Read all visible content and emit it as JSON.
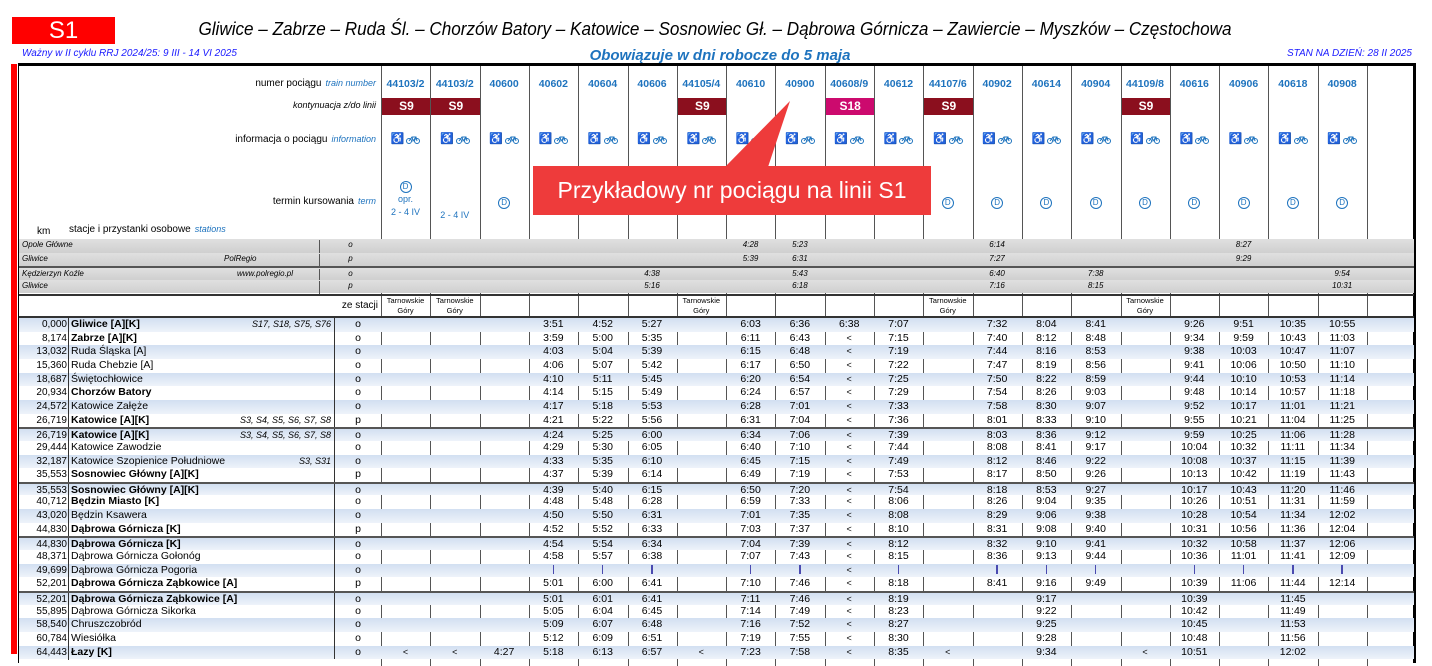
{
  "header": {
    "line": "S1",
    "title": "Gliwice – Zabrze – Ruda Śl. – Chorzów Batory – Katowice – Sosnowiec Gł. – Dąbrowa Górnicza – Zawiercie – Myszków – Częstochowa",
    "validity": "Ważny w II cyklu RRJ 2024/25: 9 III - 14 VI 2025",
    "days": "Obowiązuje w dni robocze do 5 maja",
    "state": "STAN NA DZIEŃ: 28 II 2025",
    "line_color": "#ff0000"
  },
  "labels": {
    "train_number": "numer pociągu",
    "train_number_en": "train number",
    "continuation": "kontynuacja z/do linii",
    "info": "informacja o pociągu",
    "info_en": "information",
    "term": "termin kursowania",
    "term_en": "term",
    "km": "km",
    "stations": "stacje i przystanki osobowe",
    "stations_en": "stations",
    "from_station": "ze stacji",
    "operator": "PolRegio",
    "operator_url": "www.polregio.pl"
  },
  "callout": "Przykładowy nr pociągu na linii S1",
  "colors": {
    "S9": "#8b0f1e",
    "S18": "#cc0a6e",
    "accent": "#1e73be"
  },
  "trains": [
    {
      "number": "44103/2",
      "cont": "S9",
      "term": [
        "D",
        "opr.",
        "2 - 4 IV"
      ],
      "from": "Tarnowskie Góry"
    },
    {
      "number": "44103/2",
      "cont": "S9",
      "term": [
        "",
        "2 - 4 IV"
      ],
      "from": "Tarnowskie Góry"
    },
    {
      "number": "40600",
      "cont": "",
      "term": [
        "D"
      ],
      "from": ""
    },
    {
      "number": "40602",
      "cont": "",
      "term": [],
      "from": ""
    },
    {
      "number": "40604",
      "cont": "",
      "term": [],
      "from": ""
    },
    {
      "number": "40606",
      "cont": "",
      "term": [],
      "from": ""
    },
    {
      "number": "44105/4",
      "cont": "S9",
      "term": [],
      "from": "Tarnowskie Góry"
    },
    {
      "number": "40610",
      "cont": "",
      "term": [],
      "from": ""
    },
    {
      "number": "40900",
      "cont": "",
      "term": [],
      "from": ""
    },
    {
      "number": "40608/9",
      "cont": "S18",
      "term": [],
      "from": ""
    },
    {
      "number": "40612",
      "cont": "",
      "term": [],
      "from": ""
    },
    {
      "number": "44107/6",
      "cont": "S9",
      "term": [
        "D"
      ],
      "from": "Tarnowskie Góry"
    },
    {
      "number": "40902",
      "cont": "",
      "term": [
        "D"
      ],
      "from": ""
    },
    {
      "number": "40614",
      "cont": "",
      "term": [
        "D"
      ],
      "from": ""
    },
    {
      "number": "40904",
      "cont": "",
      "term": [
        "D"
      ],
      "from": ""
    },
    {
      "number": "44109/8",
      "cont": "S9",
      "term": [
        "D"
      ],
      "from": "Tarnowskie Góry"
    },
    {
      "number": "40616",
      "cont": "",
      "term": [
        "D"
      ],
      "from": ""
    },
    {
      "number": "40906",
      "cont": "",
      "term": [
        "D"
      ],
      "from": ""
    },
    {
      "number": "40618",
      "cont": "",
      "term": [
        "D"
      ],
      "from": ""
    },
    {
      "number": "40908",
      "cont": "",
      "term": [
        "D"
      ],
      "from": ""
    }
  ],
  "connections": [
    {
      "station": "Opole Główne",
      "note": "",
      "type": "o",
      "times": [
        "",
        "",
        "",
        "",
        "",
        "",
        "",
        "4:28",
        "5:23",
        "",
        "",
        "",
        "6:14",
        "",
        "",
        "",
        "",
        "8:27",
        "",
        ""
      ]
    },
    {
      "station": "Gliwice",
      "note": "PolRegio",
      "type": "p",
      "times": [
        "",
        "",
        "",
        "",
        "",
        "",
        "",
        "5:39",
        "6:31",
        "",
        "",
        "",
        "7:27",
        "",
        "",
        "",
        "",
        "9:29",
        "",
        ""
      ]
    },
    {
      "station": "Kędzierzyn Koźle",
      "note": "www.polregio.pl",
      "type": "o",
      "times": [
        "",
        "",
        "",
        "",
        "",
        "4:38",
        "",
        "",
        "5:43",
        "",
        "",
        "",
        "6:40",
        "",
        "7:38",
        "",
        "",
        "",
        "",
        "9:54"
      ]
    },
    {
      "station": "Gliwice",
      "note": "",
      "type": "p",
      "times": [
        "",
        "",
        "",
        "",
        "",
        "5:16",
        "",
        "",
        "6:18",
        "",
        "",
        "",
        "7:16",
        "",
        "8:15",
        "",
        "",
        "",
        "",
        "10:31"
      ]
    }
  ],
  "stations": [
    {
      "km": "0,000",
      "name": "Gliwice [A][K]",
      "bold": true,
      "lines": "S17, S18, S75, S76",
      "type": "o",
      "times": [
        "",
        "",
        "",
        "3:51",
        "4:52",
        "5:27",
        "",
        "6:03",
        "6:36",
        "6:38",
        "7:07",
        "",
        "7:32",
        "8:04",
        "8:41",
        "",
        "9:26",
        "9:51",
        "10:35",
        "10:55"
      ]
    },
    {
      "km": "8,174",
      "name": "Zabrze [A][K]",
      "bold": true,
      "lines": "",
      "type": "o",
      "times": [
        "",
        "",
        "",
        "3:59",
        "5:00",
        "5:35",
        "",
        "6:11",
        "6:43",
        "<",
        "7:15",
        "",
        "7:40",
        "8:12",
        "8:48",
        "",
        "9:34",
        "9:59",
        "10:43",
        "11:03"
      ]
    },
    {
      "km": "13,032",
      "name": "Ruda Śląska [A]",
      "bold": false,
      "lines": "",
      "type": "o",
      "times": [
        "",
        "",
        "",
        "4:03",
        "5:04",
        "5:39",
        "",
        "6:15",
        "6:48",
        "<",
        "7:19",
        "",
        "7:44",
        "8:16",
        "8:53",
        "",
        "9:38",
        "10:03",
        "10:47",
        "11:07"
      ]
    },
    {
      "km": "15,360",
      "name": "Ruda Chebzie [A]",
      "bold": false,
      "lines": "",
      "type": "o",
      "times": [
        "",
        "",
        "",
        "4:06",
        "5:07",
        "5:42",
        "",
        "6:17",
        "6:50",
        "<",
        "7:22",
        "",
        "7:47",
        "8:19",
        "8:56",
        "",
        "9:41",
        "10:06",
        "10:50",
        "11:10"
      ]
    },
    {
      "km": "18,687",
      "name": "Świętochłowice",
      "bold": false,
      "lines": "",
      "type": "o",
      "times": [
        "",
        "",
        "",
        "4:10",
        "5:11",
        "5:45",
        "",
        "6:20",
        "6:54",
        "<",
        "7:25",
        "",
        "7:50",
        "8:22",
        "8:59",
        "",
        "9:44",
        "10:10",
        "10:53",
        "11:14"
      ]
    },
    {
      "km": "20,934",
      "name": "Chorzów Batory",
      "bold": true,
      "lines": "",
      "type": "o",
      "times": [
        "",
        "",
        "",
        "4:14",
        "5:15",
        "5:49",
        "",
        "6:24",
        "6:57",
        "<",
        "7:29",
        "",
        "7:54",
        "8:26",
        "9:03",
        "",
        "9:48",
        "10:14",
        "10:57",
        "11:18"
      ]
    },
    {
      "km": "24,572",
      "name": "Katowice Załęże",
      "bold": false,
      "lines": "",
      "type": "o",
      "times": [
        "",
        "",
        "",
        "4:17",
        "5:18",
        "5:53",
        "",
        "6:28",
        "7:01",
        "<",
        "7:33",
        "",
        "7:58",
        "8:30",
        "9:07",
        "",
        "9:52",
        "10:17",
        "11:01",
        "11:21"
      ]
    },
    {
      "km": "26,719",
      "name": "Katowice [A][K]",
      "bold": true,
      "lines": "S3, S4, S5, S6, S7, S8",
      "type": "p",
      "times": [
        "",
        "",
        "",
        "4:21",
        "5:22",
        "5:56",
        "",
        "6:31",
        "7:04",
        "<",
        "7:36",
        "",
        "8:01",
        "8:33",
        "9:10",
        "",
        "9:55",
        "10:21",
        "11:04",
        "11:25"
      ]
    },
    {
      "km": "26,719",
      "name": "Katowice [A][K]",
      "bold": true,
      "lines": "S3, S4, S5, S6, S7, S8",
      "type": "o",
      "times": [
        "",
        "",
        "",
        "4:24",
        "5:25",
        "6:00",
        "",
        "6:34",
        "7:06",
        "<",
        "7:39",
        "",
        "8:03",
        "8:36",
        "9:12",
        "",
        "9:59",
        "10:25",
        "11:06",
        "11:28"
      ]
    },
    {
      "km": "29,444",
      "name": "Katowice Zawodzie",
      "bold": false,
      "lines": "",
      "type": "o",
      "times": [
        "",
        "",
        "",
        "4:29",
        "5:30",
        "6:05",
        "",
        "6:40",
        "7:10",
        "<",
        "7:44",
        "",
        "8:08",
        "8:41",
        "9:17",
        "",
        "10:04",
        "10:32",
        "11:11",
        "11:34"
      ]
    },
    {
      "km": "32,187",
      "name": "Katowice Szopienice Południowe",
      "bold": false,
      "lines": "S3, S31",
      "type": "o",
      "times": [
        "",
        "",
        "",
        "4:33",
        "5:35",
        "6:10",
        "",
        "6:45",
        "7:15",
        "<",
        "7:49",
        "",
        "8:12",
        "8:46",
        "9:22",
        "",
        "10:08",
        "10:37",
        "11:15",
        "11:39"
      ]
    },
    {
      "km": "35,553",
      "name": "Sosnowiec Główny [A][K]",
      "bold": true,
      "lines": "",
      "type": "p",
      "times": [
        "",
        "",
        "",
        "4:37",
        "5:39",
        "6:14",
        "",
        "6:49",
        "7:19",
        "<",
        "7:53",
        "",
        "8:17",
        "8:50",
        "9:26",
        "",
        "10:13",
        "10:42",
        "11:19",
        "11:43"
      ]
    },
    {
      "km": "35,553",
      "name": "Sosnowiec Główny [A][K]",
      "bold": true,
      "lines": "",
      "type": "o",
      "times": [
        "",
        "",
        "",
        "4:39",
        "5:40",
        "6:15",
        "",
        "6:50",
        "7:20",
        "<",
        "7:54",
        "",
        "8:18",
        "8:53",
        "9:27",
        "",
        "10:17",
        "10:43",
        "11:20",
        "11:46"
      ]
    },
    {
      "km": "40,712",
      "name": "Będzin Miasto [K]",
      "bold": true,
      "lines": "",
      "type": "o",
      "times": [
        "",
        "",
        "",
        "4:48",
        "5:48",
        "6:28",
        "",
        "6:59",
        "7:33",
        "<",
        "8:06",
        "",
        "8:26",
        "9:04",
        "9:35",
        "",
        "10:26",
        "10:51",
        "11:31",
        "11:59"
      ]
    },
    {
      "km": "43,020",
      "name": "Będzin Ksawera",
      "bold": false,
      "lines": "",
      "type": "o",
      "times": [
        "",
        "",
        "",
        "4:50",
        "5:50",
        "6:31",
        "",
        "7:01",
        "7:35",
        "<",
        "8:08",
        "",
        "8:29",
        "9:06",
        "9:38",
        "",
        "10:28",
        "10:54",
        "11:34",
        "12:02"
      ]
    },
    {
      "km": "44,830",
      "name": "Dąbrowa Górnicza [K]",
      "bold": true,
      "lines": "",
      "type": "p",
      "times": [
        "",
        "",
        "",
        "4:52",
        "5:52",
        "6:33",
        "",
        "7:03",
        "7:37",
        "<",
        "8:10",
        "",
        "8:31",
        "9:08",
        "9:40",
        "",
        "10:31",
        "10:56",
        "11:36",
        "12:04"
      ]
    },
    {
      "km": "44,830",
      "name": "Dąbrowa Górnicza [K]",
      "bold": true,
      "lines": "",
      "type": "o",
      "times": [
        "",
        "",
        "",
        "4:54",
        "5:54",
        "6:34",
        "",
        "7:04",
        "7:39",
        "<",
        "8:12",
        "",
        "8:32",
        "9:10",
        "9:41",
        "",
        "10:32",
        "10:58",
        "11:37",
        "12:06"
      ]
    },
    {
      "km": "48,371",
      "name": "Dąbrowa Górnicza Gołonóg",
      "bold": false,
      "lines": "",
      "type": "o",
      "times": [
        "",
        "",
        "",
        "4:58",
        "5:57",
        "6:38",
        "",
        "7:07",
        "7:43",
        "<",
        "8:15",
        "",
        "8:36",
        "9:13",
        "9:44",
        "",
        "10:36",
        "11:01",
        "11:41",
        "12:09"
      ]
    },
    {
      "km": "49,699",
      "name": "Dąbrowa Górnicza Pogoria",
      "bold": false,
      "lines": "",
      "type": "o",
      "times": [
        "",
        "",
        "",
        "|",
        "|",
        "|",
        "",
        "|",
        "|",
        "<",
        "|",
        "",
        "|",
        "|",
        "|",
        "",
        "|",
        "|",
        "|",
        "|"
      ]
    },
    {
      "km": "52,201",
      "name": "Dąbrowa Górnicza Ząbkowice [A]",
      "bold": true,
      "lines": "",
      "type": "p",
      "times": [
        "",
        "",
        "",
        "5:01",
        "6:00",
        "6:41",
        "",
        "7:10",
        "7:46",
        "<",
        "8:18",
        "",
        "8:41",
        "9:16",
        "9:49",
        "",
        "10:39",
        "11:06",
        "11:44",
        "12:14"
      ]
    },
    {
      "km": "52,201",
      "name": "Dąbrowa Górnicza Ząbkowice [A]",
      "bold": true,
      "lines": "",
      "type": "o",
      "times": [
        "",
        "",
        "",
        "5:01",
        "6:01",
        "6:41",
        "",
        "7:11",
        "7:46",
        "<",
        "8:19",
        "",
        "",
        "9:17",
        "",
        "",
        "10:39",
        "",
        "11:45",
        ""
      ]
    },
    {
      "km": "55,895",
      "name": "Dąbrowa Górnicza Sikorka",
      "bold": false,
      "lines": "",
      "type": "o",
      "times": [
        "",
        "",
        "",
        "5:05",
        "6:04",
        "6:45",
        "",
        "7:14",
        "7:49",
        "<",
        "8:23",
        "",
        "",
        "9:22",
        "",
        "",
        "10:42",
        "",
        "11:49",
        ""
      ]
    },
    {
      "km": "58,540",
      "name": "Chruszczobród",
      "bold": false,
      "lines": "",
      "type": "o",
      "times": [
        "",
        "",
        "",
        "5:09",
        "6:07",
        "6:48",
        "",
        "7:16",
        "7:52",
        "<",
        "8:27",
        "",
        "",
        "9:25",
        "",
        "",
        "10:45",
        "",
        "11:53",
        ""
      ]
    },
    {
      "km": "60,784",
      "name": "Wiesiółka",
      "bold": false,
      "lines": "",
      "type": "o",
      "times": [
        "",
        "",
        "",
        "5:12",
        "6:09",
        "6:51",
        "",
        "7:19",
        "7:55",
        "<",
        "8:30",
        "",
        "",
        "9:28",
        "",
        "",
        "10:48",
        "",
        "11:56",
        ""
      ]
    },
    {
      "km": "64,443",
      "name": "Łazy [K]",
      "bold": true,
      "lines": "",
      "type": "o",
      "times": [
        "<",
        "<",
        "4:27",
        "5:18",
        "6:13",
        "6:57",
        "<",
        "7:23",
        "7:58",
        "<",
        "8:35",
        "<",
        "",
        "9:34",
        "",
        "<",
        "10:51",
        "",
        "12:02",
        ""
      ]
    }
  ]
}
